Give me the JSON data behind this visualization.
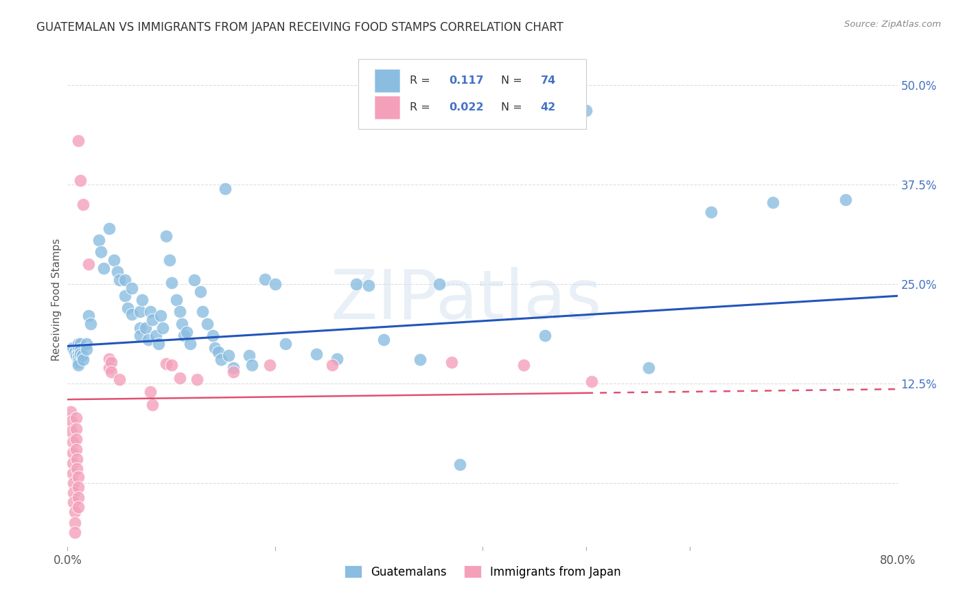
{
  "title": "GUATEMALAN VS IMMIGRANTS FROM JAPAN RECEIVING FOOD STAMPS CORRELATION CHART",
  "source": "Source: ZipAtlas.com",
  "ylabel": "Receiving Food Stamps",
  "xlim": [
    0.0,
    0.8
  ],
  "ylim": [
    -0.085,
    0.545
  ],
  "yticks": [
    0.0,
    0.125,
    0.25,
    0.375,
    0.5
  ],
  "ytick_labels_right": [
    "",
    "12.5%",
    "25.0%",
    "37.5%",
    "50.0%"
  ],
  "watermark": "ZIPatlas",
  "color_blue": "#8abde0",
  "color_pink": "#f4a0bb",
  "blue_scatter": [
    [
      0.005,
      0.17
    ],
    [
      0.007,
      0.165
    ],
    [
      0.008,
      0.16
    ],
    [
      0.01,
      0.175
    ],
    [
      0.01,
      0.168
    ],
    [
      0.01,
      0.162
    ],
    [
      0.01,
      0.157
    ],
    [
      0.01,
      0.152
    ],
    [
      0.01,
      0.148
    ],
    [
      0.012,
      0.175
    ],
    [
      0.012,
      0.168
    ],
    [
      0.012,
      0.162
    ],
    [
      0.014,
      0.16
    ],
    [
      0.015,
      0.155
    ],
    [
      0.018,
      0.175
    ],
    [
      0.018,
      0.168
    ],
    [
      0.02,
      0.21
    ],
    [
      0.022,
      0.2
    ],
    [
      0.03,
      0.305
    ],
    [
      0.032,
      0.29
    ],
    [
      0.035,
      0.27
    ],
    [
      0.04,
      0.32
    ],
    [
      0.045,
      0.28
    ],
    [
      0.048,
      0.265
    ],
    [
      0.05,
      0.255
    ],
    [
      0.055,
      0.255
    ],
    [
      0.055,
      0.235
    ],
    [
      0.058,
      0.22
    ],
    [
      0.062,
      0.245
    ],
    [
      0.062,
      0.212
    ],
    [
      0.07,
      0.215
    ],
    [
      0.07,
      0.195
    ],
    [
      0.07,
      0.185
    ],
    [
      0.072,
      0.23
    ],
    [
      0.075,
      0.195
    ],
    [
      0.078,
      0.18
    ],
    [
      0.08,
      0.215
    ],
    [
      0.082,
      0.205
    ],
    [
      0.085,
      0.185
    ],
    [
      0.088,
      0.175
    ],
    [
      0.09,
      0.21
    ],
    [
      0.092,
      0.195
    ],
    [
      0.095,
      0.31
    ],
    [
      0.098,
      0.28
    ],
    [
      0.1,
      0.252
    ],
    [
      0.105,
      0.23
    ],
    [
      0.108,
      0.215
    ],
    [
      0.11,
      0.2
    ],
    [
      0.112,
      0.185
    ],
    [
      0.115,
      0.19
    ],
    [
      0.118,
      0.175
    ],
    [
      0.122,
      0.255
    ],
    [
      0.128,
      0.24
    ],
    [
      0.13,
      0.215
    ],
    [
      0.135,
      0.2
    ],
    [
      0.14,
      0.185
    ],
    [
      0.142,
      0.17
    ],
    [
      0.145,
      0.165
    ],
    [
      0.148,
      0.155
    ],
    [
      0.152,
      0.37
    ],
    [
      0.155,
      0.16
    ],
    [
      0.16,
      0.145
    ],
    [
      0.175,
      0.16
    ],
    [
      0.178,
      0.148
    ],
    [
      0.19,
      0.256
    ],
    [
      0.2,
      0.25
    ],
    [
      0.21,
      0.175
    ],
    [
      0.24,
      0.162
    ],
    [
      0.26,
      0.156
    ],
    [
      0.278,
      0.25
    ],
    [
      0.29,
      0.248
    ],
    [
      0.305,
      0.18
    ],
    [
      0.34,
      0.155
    ],
    [
      0.358,
      0.25
    ],
    [
      0.378,
      0.023
    ],
    [
      0.46,
      0.185
    ],
    [
      0.5,
      0.468
    ],
    [
      0.56,
      0.145
    ],
    [
      0.62,
      0.34
    ],
    [
      0.68,
      0.352
    ],
    [
      0.75,
      0.356
    ]
  ],
  "pink_scatter": [
    [
      0.003,
      0.09
    ],
    [
      0.004,
      0.078
    ],
    [
      0.004,
      0.065
    ],
    [
      0.005,
      0.052
    ],
    [
      0.005,
      0.038
    ],
    [
      0.005,
      0.025
    ],
    [
      0.005,
      0.012
    ],
    [
      0.006,
      0.0
    ],
    [
      0.006,
      -0.012
    ],
    [
      0.006,
      -0.024
    ],
    [
      0.007,
      -0.036
    ],
    [
      0.007,
      -0.05
    ],
    [
      0.007,
      -0.062
    ],
    [
      0.008,
      0.082
    ],
    [
      0.008,
      0.068
    ],
    [
      0.008,
      0.055
    ],
    [
      0.008,
      0.042
    ],
    [
      0.009,
      0.03
    ],
    [
      0.009,
      0.018
    ],
    [
      0.01,
      0.008
    ],
    [
      0.01,
      -0.005
    ],
    [
      0.01,
      -0.018
    ],
    [
      0.01,
      -0.03
    ],
    [
      0.01,
      0.43
    ],
    [
      0.012,
      0.38
    ],
    [
      0.015,
      0.35
    ],
    [
      0.02,
      0.275
    ],
    [
      0.04,
      0.156
    ],
    [
      0.04,
      0.145
    ],
    [
      0.042,
      0.152
    ],
    [
      0.042,
      0.14
    ],
    [
      0.05,
      0.13
    ],
    [
      0.08,
      0.115
    ],
    [
      0.082,
      0.098
    ],
    [
      0.095,
      0.15
    ],
    [
      0.1,
      0.148
    ],
    [
      0.108,
      0.132
    ],
    [
      0.125,
      0.13
    ],
    [
      0.16,
      0.14
    ],
    [
      0.195,
      0.148
    ],
    [
      0.255,
      0.148
    ],
    [
      0.37,
      0.152
    ],
    [
      0.44,
      0.148
    ],
    [
      0.505,
      0.128
    ]
  ],
  "blue_line_x": [
    0.0,
    0.8
  ],
  "blue_line_y": [
    0.172,
    0.235
  ],
  "pink_line_x": [
    0.0,
    0.8
  ],
  "pink_line_y": [
    0.105,
    0.118
  ],
  "grid_color": "#dddddd",
  "legend_blue_r": "0.117",
  "legend_blue_n": "74",
  "legend_pink_r": "0.022",
  "legend_pink_n": "42",
  "axis_label_color": "#4472c4",
  "title_color": "#333333"
}
